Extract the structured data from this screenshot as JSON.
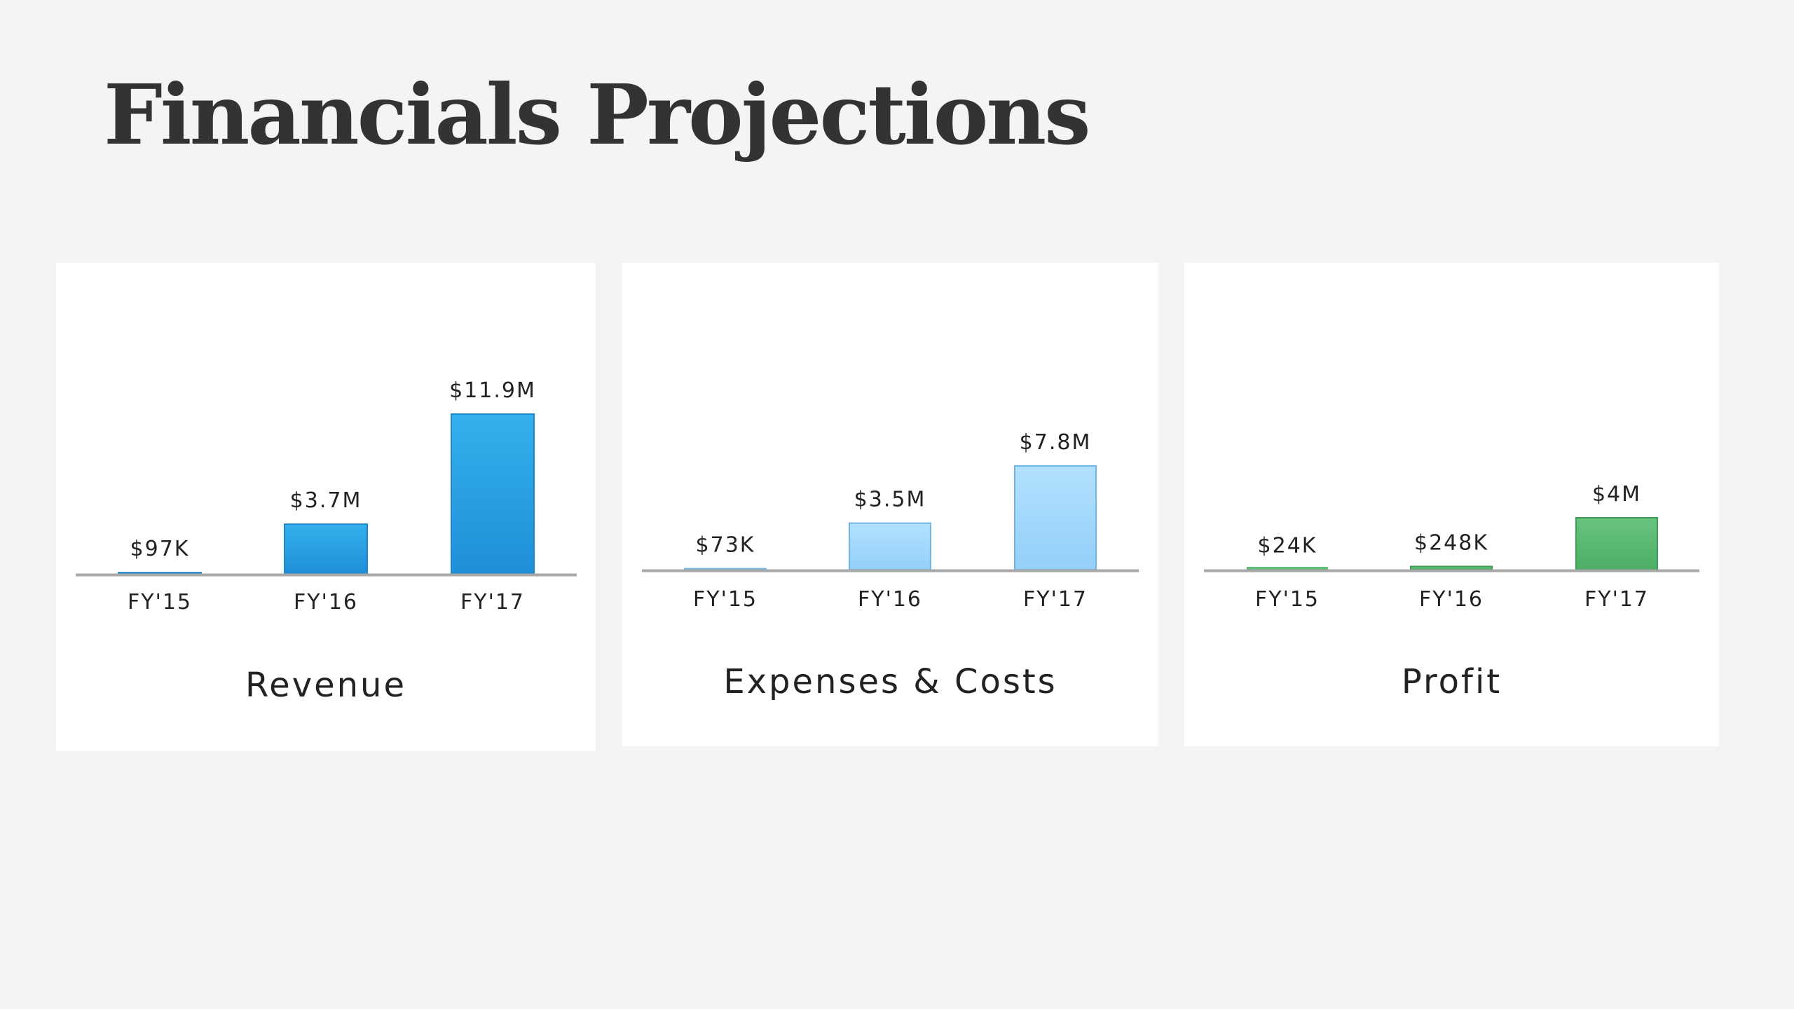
{
  "page": {
    "title": "Financials Projections"
  },
  "colors": {
    "revenue": "#2aa2e2",
    "expenses": "#a9dbfb",
    "profit": "#5cbd75",
    "axis": "#a8a8a8"
  },
  "chart_data": [
    {
      "type": "bar",
      "title": "Revenue",
      "categories": [
        "FY'15",
        "FY'16",
        "FY'17"
      ],
      "values": [
        0.097,
        3.7,
        11.9
      ],
      "data_labels": [
        "$97K",
        "$3.7M",
        "$11.9M"
      ],
      "units": "$M",
      "color": "#2aa2e2",
      "grid": false
    },
    {
      "type": "bar",
      "title": "Expenses & Costs",
      "categories": [
        "FY'15",
        "FY'16",
        "FY'17"
      ],
      "values": [
        0.073,
        3.5,
        7.8
      ],
      "data_labels": [
        "$73K",
        "$3.5M",
        "$7.8M"
      ],
      "units": "$M",
      "color": "#a9dbfb",
      "grid": false
    },
    {
      "type": "bar",
      "title": "Profit",
      "categories": [
        "FY'15",
        "FY'16",
        "FY'17"
      ],
      "values": [
        0.024,
        0.248,
        4.0
      ],
      "data_labels": [
        "$24K",
        "$248K",
        "$4M"
      ],
      "units": "$M",
      "color": "#5cbd75",
      "grid": false
    }
  ]
}
